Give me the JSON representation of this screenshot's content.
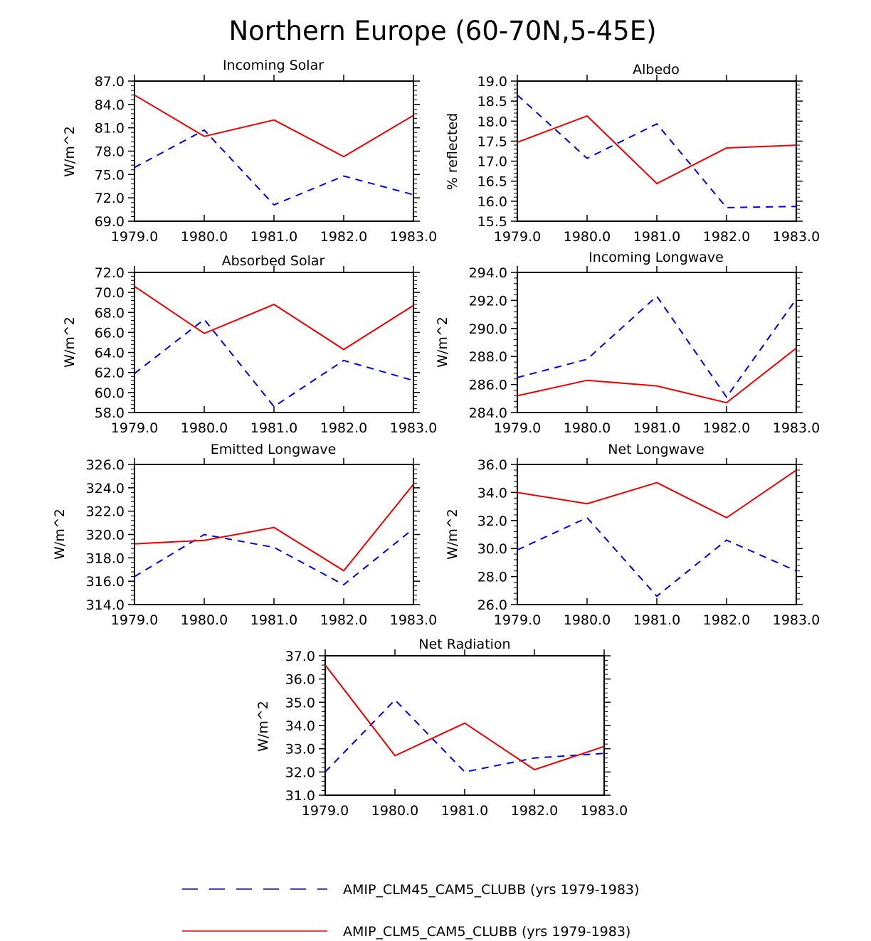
{
  "title": "Northern Europe (60-70N,5-45E)",
  "colors": {
    "series1": "#0000ee",
    "series2": "#ee0000",
    "axis": "#000000"
  },
  "legend": [
    {
      "label": "AMIP_CLM45_CAM5_CLUBB (yrs 1979-1983)",
      "color": "#0000ee",
      "style": "dashed"
    },
    {
      "label": "AMIP_CLM5_CAM5_CLUBB (yrs 1979-1983)",
      "color": "#ee0000",
      "style": "solid"
    }
  ],
  "chart_data": [
    {
      "type": "line",
      "title": "Incoming Solar",
      "ylabel": "W/m^2",
      "xlabel": "",
      "x": [
        1979,
        1980,
        1981,
        1982,
        1983
      ],
      "xlim": [
        1979,
        1983
      ],
      "xticks": [
        "1979.0",
        "1980.0",
        "1981.0",
        "1982.0",
        "1983.0"
      ],
      "ylim": [
        69,
        87
      ],
      "yticks": [
        "69.0",
        "72.0",
        "75.0",
        "78.0",
        "81.0",
        "84.0",
        "87.0"
      ],
      "series": [
        {
          "name": "AMIP_CLM45_CAM5_CLUBB (yrs 1979-1983)",
          "values": [
            75.9,
            80.7,
            71.1,
            74.8,
            72.4
          ]
        },
        {
          "name": "AMIP_CLM5_CAM5_CLUBB (yrs 1979-1983)",
          "values": [
            85.2,
            79.9,
            82.0,
            77.3,
            82.6
          ]
        }
      ]
    },
    {
      "type": "line",
      "title": "Albedo",
      "ylabel": "% reflected",
      "xlabel": "",
      "x": [
        1979,
        1980,
        1981,
        1982,
        1983
      ],
      "xlim": [
        1979,
        1983
      ],
      "xticks": [
        "1979.0",
        "1980.0",
        "1981.0",
        "1982.0",
        "1983.0"
      ],
      "ylim": [
        15.5,
        19.0
      ],
      "yticks": [
        "15.5",
        "16.0",
        "16.5",
        "17.0",
        "17.5",
        "18.0",
        "18.5",
        "19.0"
      ],
      "series": [
        {
          "name": "AMIP_CLM45_CAM5_CLUBB (yrs 1979-1983)",
          "values": [
            18.65,
            17.07,
            17.93,
            15.84,
            15.87
          ]
        },
        {
          "name": "AMIP_CLM5_CAM5_CLUBB (yrs 1979-1983)",
          "values": [
            17.47,
            18.13,
            16.44,
            17.33,
            17.4
          ]
        }
      ]
    },
    {
      "type": "line",
      "title": "Absorbed Solar",
      "ylabel": "W/m^2",
      "xlabel": "",
      "x": [
        1979,
        1980,
        1981,
        1982,
        1983
      ],
      "xlim": [
        1979,
        1983
      ],
      "xticks": [
        "1979.0",
        "1980.0",
        "1981.0",
        "1982.0",
        "1983.0"
      ],
      "ylim": [
        58,
        72
      ],
      "yticks": [
        "58.0",
        "60.0",
        "62.0",
        "64.0",
        "66.0",
        "68.0",
        "70.0",
        "72.0"
      ],
      "series": [
        {
          "name": "AMIP_CLM45_CAM5_CLUBB (yrs 1979-1983)",
          "values": [
            61.9,
            67.3,
            58.6,
            63.2,
            61.2
          ]
        },
        {
          "name": "AMIP_CLM5_CAM5_CLUBB (yrs 1979-1983)",
          "values": [
            70.6,
            65.9,
            68.8,
            64.3,
            68.7
          ]
        }
      ]
    },
    {
      "type": "line",
      "title": "Incoming Longwave",
      "ylabel": "W/m^2",
      "xlabel": "",
      "x": [
        1979,
        1980,
        1981,
        1982,
        1983
      ],
      "xlim": [
        1979,
        1983
      ],
      "xticks": [
        "1979.0",
        "1980.0",
        "1981.0",
        "1982.0",
        "1983.0"
      ],
      "ylim": [
        284,
        294
      ],
      "yticks": [
        "284.0",
        "286.0",
        "288.0",
        "290.0",
        "292.0",
        "294.0"
      ],
      "series": [
        {
          "name": "AMIP_CLM45_CAM5_CLUBB (yrs 1979-1983)",
          "values": [
            286.5,
            287.8,
            292.3,
            285.1,
            292.1
          ]
        },
        {
          "name": "AMIP_CLM5_CAM5_CLUBB (yrs 1979-1983)",
          "values": [
            285.2,
            286.3,
            285.9,
            284.7,
            288.6
          ]
        }
      ]
    },
    {
      "type": "line",
      "title": "Emitted Longwave",
      "ylabel": "W/m^2",
      "xlabel": "",
      "x": [
        1979,
        1980,
        1981,
        1982,
        1983
      ],
      "xlim": [
        1979,
        1983
      ],
      "xticks": [
        "1979.0",
        "1980.0",
        "1981.0",
        "1982.0",
        "1983.0"
      ],
      "ylim": [
        314,
        326
      ],
      "yticks": [
        "314.0",
        "316.0",
        "318.0",
        "320.0",
        "322.0",
        "324.0",
        "326.0"
      ],
      "series": [
        {
          "name": "AMIP_CLM45_CAM5_CLUBB (yrs 1979-1983)",
          "values": [
            316.4,
            320.0,
            318.9,
            315.7,
            320.5
          ]
        },
        {
          "name": "AMIP_CLM5_CAM5_CLUBB (yrs 1979-1983)",
          "values": [
            319.2,
            319.5,
            320.6,
            316.9,
            324.3
          ]
        }
      ]
    },
    {
      "type": "line",
      "title": "Net Longwave",
      "ylabel": "W/m^2",
      "xlabel": "",
      "x": [
        1979,
        1980,
        1981,
        1982,
        1983
      ],
      "xlim": [
        1979,
        1983
      ],
      "xticks": [
        "1979.0",
        "1980.0",
        "1981.0",
        "1982.0",
        "1983.0"
      ],
      "ylim": [
        26,
        36
      ],
      "yticks": [
        "26.0",
        "28.0",
        "30.0",
        "32.0",
        "34.0",
        "36.0"
      ],
      "series": [
        {
          "name": "AMIP_CLM45_CAM5_CLUBB (yrs 1979-1983)",
          "values": [
            29.9,
            32.2,
            26.6,
            30.6,
            28.4
          ]
        },
        {
          "name": "AMIP_CLM5_CAM5_CLUBB (yrs 1979-1983)",
          "values": [
            34.0,
            33.2,
            34.7,
            32.2,
            35.6
          ]
        }
      ]
    },
    {
      "type": "line",
      "title": "Net Radiation",
      "ylabel": "W/m^2",
      "xlabel": "",
      "x": [
        1979,
        1980,
        1981,
        1982,
        1983
      ],
      "xlim": [
        1979,
        1983
      ],
      "xticks": [
        "1979.0",
        "1980.0",
        "1981.0",
        "1982.0",
        "1983.0"
      ],
      "ylim": [
        31,
        37
      ],
      "yticks": [
        "31.0",
        "32.0",
        "33.0",
        "34.0",
        "35.0",
        "36.0",
        "37.0"
      ],
      "series": [
        {
          "name": "AMIP_CLM45_CAM5_CLUBB (yrs 1979-1983)",
          "values": [
            32.0,
            35.1,
            32.0,
            32.6,
            32.8
          ]
        },
        {
          "name": "AMIP_CLM5_CAM5_CLUBB (yrs 1979-1983)",
          "values": [
            36.6,
            32.7,
            34.1,
            32.1,
            33.1
          ]
        }
      ]
    }
  ]
}
